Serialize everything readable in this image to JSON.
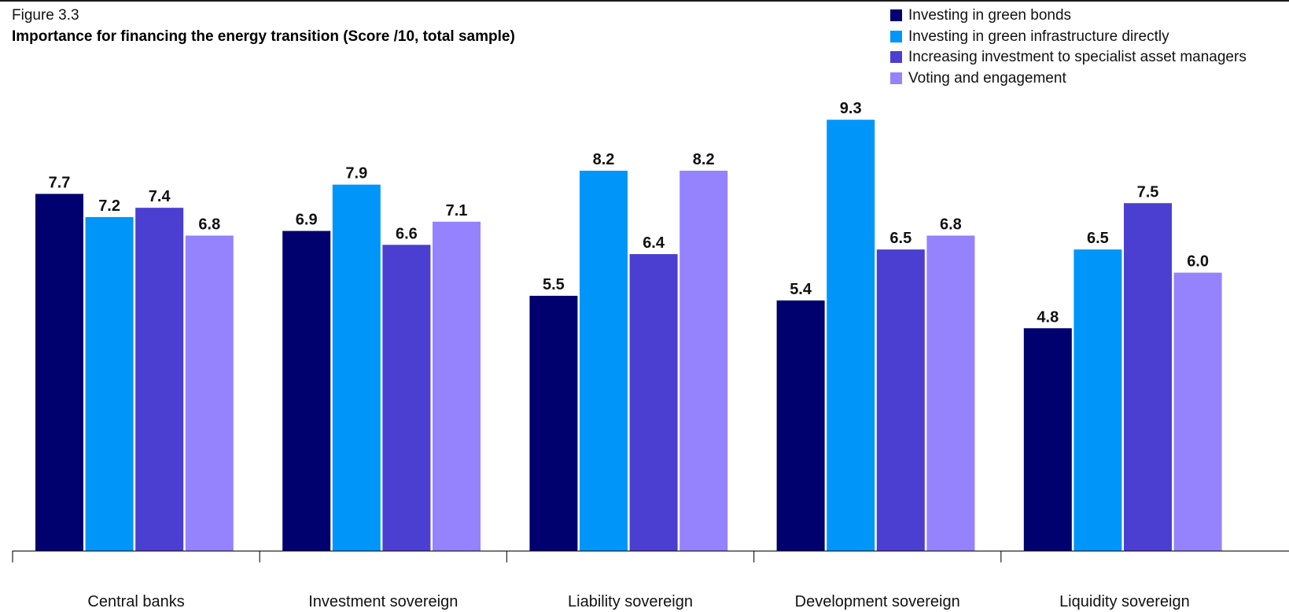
{
  "figure_label": "Figure 3.3",
  "colors": {
    "investing_in_green_bonds": "#00006e",
    "investing_in_green_infrastructure_directly": "#0096f9",
    "increasing_investment_to_specialist_asset_managers": "#4b3fd1",
    "voting_and_engagement": "#9582fd"
  },
  "chart_data": {
    "type": "bar",
    "title": "Importance for financing the energy transition (Score /10, total sample)",
    "xlabel": "",
    "ylabel": "",
    "ylim": [
      0,
      10
    ],
    "grid": false,
    "legend_position": "top-right",
    "categories": [
      "Central banks",
      "Investment sovereign",
      "Liability sovereign",
      "Development sovereign",
      "Liquidity sovereign"
    ],
    "series": [
      {
        "name": "Investing in green bonds",
        "color": "#00006e",
        "values": [
          7.7,
          6.9,
          5.5,
          5.4,
          4.8
        ]
      },
      {
        "name": "Investing in green infrastructure directly",
        "color": "#0096f9",
        "values": [
          7.2,
          7.9,
          8.2,
          9.3,
          6.5
        ]
      },
      {
        "name": "Increasing investment to specialist asset managers",
        "color": "#4b3fd1",
        "values": [
          7.4,
          6.6,
          6.4,
          6.5,
          7.5
        ]
      },
      {
        "name": "Voting and engagement",
        "color": "#9582fd",
        "values": [
          6.8,
          7.1,
          8.2,
          6.8,
          6.0
        ]
      }
    ]
  }
}
